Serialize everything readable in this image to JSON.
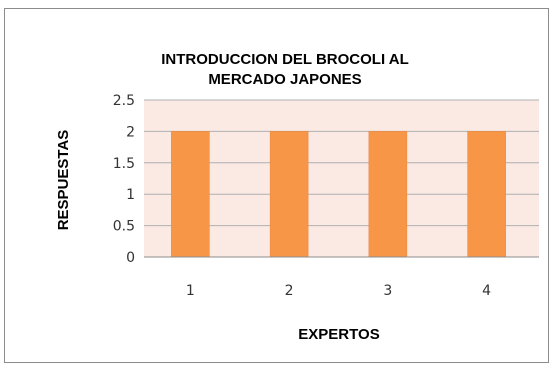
{
  "chart_data": {
    "type": "bar",
    "title_lines": [
      "INTRODUCCION DEL BROCOLI AL",
      "MERCADO JAPONES"
    ],
    "xlabel": "EXPERTOS",
    "ylabel": "RESPUESTAS",
    "categories": [
      "1",
      "2",
      "3",
      "4"
    ],
    "values": [
      2,
      2,
      2,
      2
    ],
    "ylim": [
      0,
      2.5
    ],
    "yticks": [
      0,
      0.5,
      1,
      1.5,
      2,
      2.5
    ],
    "ytick_labels": [
      "0",
      "0.5",
      "1",
      "1.5",
      "2",
      "2.5"
    ],
    "grid": true,
    "legend": "none"
  },
  "colors": {
    "bar": "#f79646",
    "bar_stroke": "#e8843a",
    "plot_background": "#fbe9e4",
    "gridline": "#b0b0b0",
    "axis": "#8c8c8c"
  }
}
